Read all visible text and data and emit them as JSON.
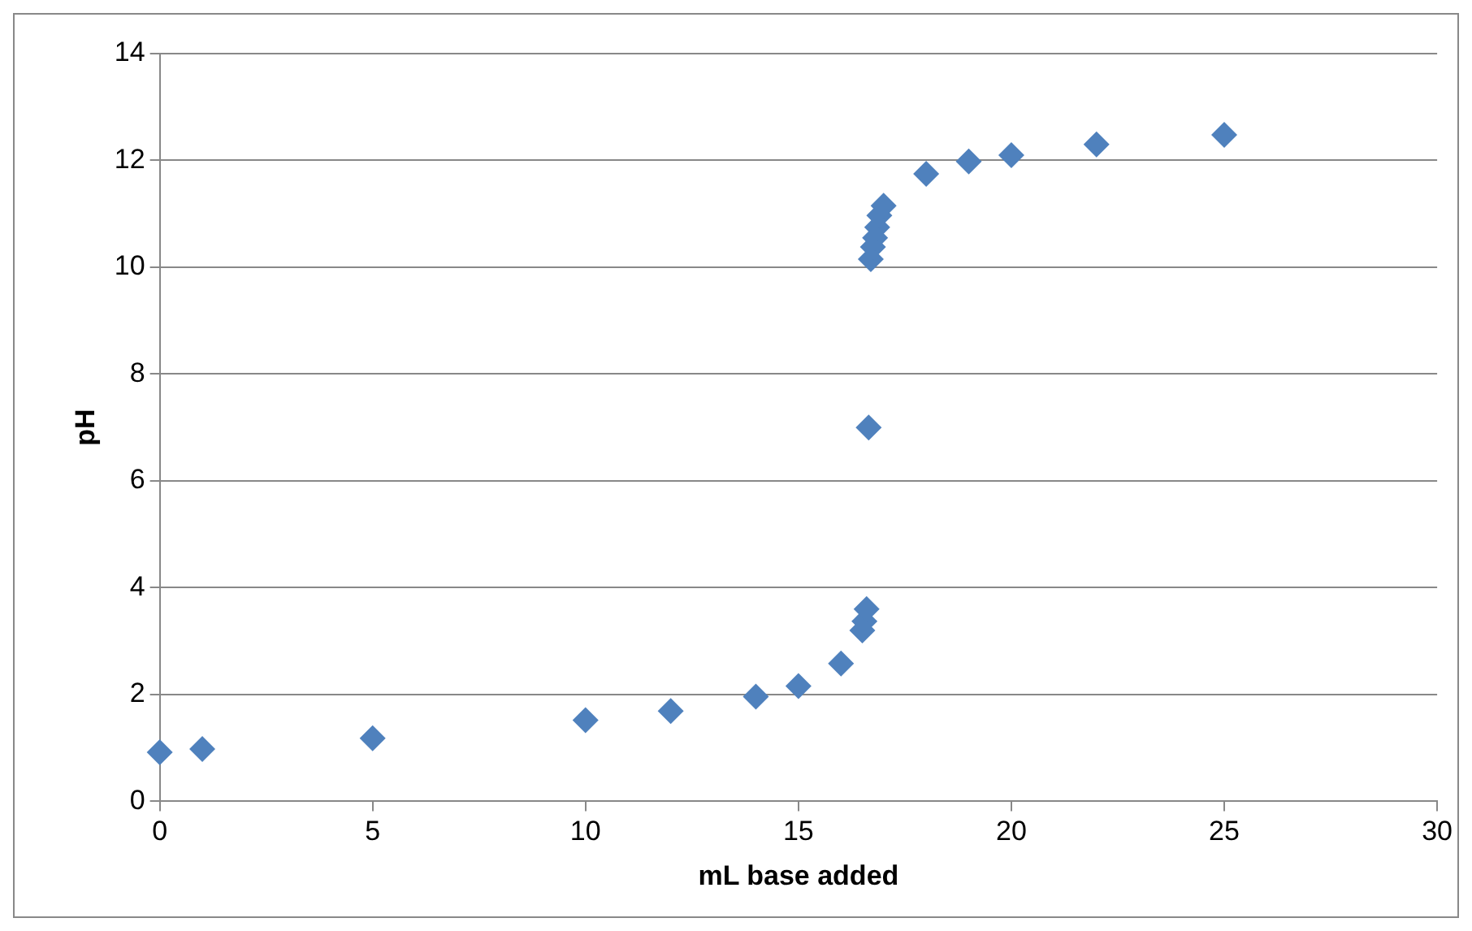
{
  "chart_data": {
    "type": "scatter",
    "xlabel": "mL base added",
    "ylabel": "pH",
    "x": [
      0,
      1,
      5,
      10,
      12,
      14,
      15,
      16,
      16.5,
      16.55,
      16.6,
      16.65,
      16.7,
      16.75,
      16.8,
      16.85,
      16.9,
      17,
      18,
      19,
      20,
      22,
      25
    ],
    "series": [
      {
        "color": "#4f81bd",
        "values": [
          0.92,
          0.98,
          1.18,
          1.52,
          1.69,
          1.96,
          2.16,
          2.58,
          3.2,
          3.37,
          3.6,
          7.0,
          10.15,
          10.38,
          10.55,
          10.75,
          10.97,
          11.15,
          11.75,
          11.98,
          12.1,
          12.3,
          12.48
        ]
      }
    ],
    "xlim": [
      0,
      30
    ],
    "xticks": [
      0,
      5,
      10,
      15,
      20,
      25,
      30
    ],
    "ylim": [
      0,
      14
    ],
    "yticks": [
      0,
      2,
      4,
      6,
      8,
      10,
      12,
      14
    ],
    "grid": "y",
    "marker": "diamond",
    "legend": false
  }
}
